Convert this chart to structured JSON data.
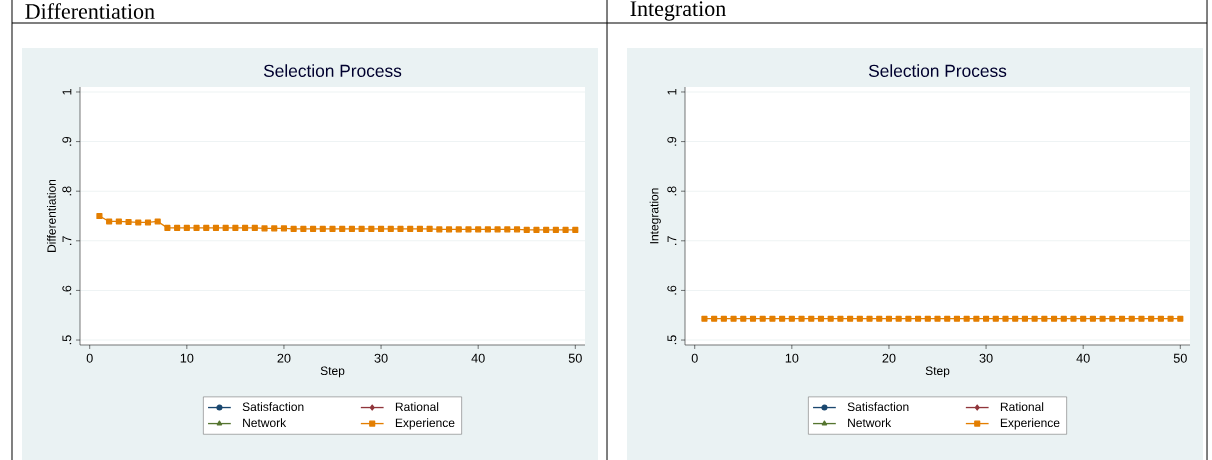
{
  "chart_data": [
    {
      "type": "line",
      "title": "Selection Process",
      "annotations": [
        "Differentiation"
      ],
      "xlabel": "Step",
      "ylabel": "Differentiation",
      "x": [
        1,
        2,
        3,
        4,
        5,
        6,
        7,
        8,
        9,
        10,
        11,
        12,
        13,
        14,
        15,
        16,
        17,
        18,
        19,
        20,
        21,
        22,
        23,
        24,
        25,
        26,
        27,
        28,
        29,
        30,
        31,
        32,
        33,
        34,
        35,
        36,
        37,
        38,
        39,
        40,
        41,
        42,
        43,
        44,
        45,
        46,
        47,
        48,
        49,
        50
      ],
      "series": [
        {
          "name": "Satisfaction",
          "color": "#1a476f",
          "marker": "circle",
          "values": [
            null,
            null,
            null,
            null,
            null,
            null,
            null,
            null,
            null,
            null,
            null,
            null,
            null,
            null,
            null,
            null,
            null,
            null,
            null,
            null,
            null,
            null,
            null,
            null,
            null,
            null,
            null,
            null,
            null,
            null,
            null,
            null,
            null,
            null,
            null,
            null,
            null,
            null,
            null,
            null,
            null,
            null,
            null,
            null,
            null,
            null,
            null,
            null,
            null,
            null
          ]
        },
        {
          "name": "Rational",
          "color": "#90353b",
          "marker": "diamond",
          "values": [
            null,
            null,
            null,
            null,
            null,
            null,
            null,
            null,
            null,
            null,
            null,
            null,
            null,
            null,
            null,
            null,
            null,
            null,
            null,
            null,
            null,
            null,
            null,
            null,
            null,
            null,
            null,
            null,
            null,
            null,
            null,
            null,
            null,
            null,
            null,
            null,
            null,
            null,
            null,
            null,
            null,
            null,
            null,
            null,
            null,
            null,
            null,
            null,
            null,
            null
          ]
        },
        {
          "name": "Network",
          "color": "#55752f",
          "marker": "triangle",
          "values": [
            null,
            null,
            null,
            null,
            null,
            null,
            null,
            null,
            null,
            null,
            null,
            null,
            null,
            null,
            null,
            null,
            null,
            null,
            null,
            null,
            null,
            null,
            null,
            null,
            null,
            null,
            null,
            null,
            null,
            null,
            null,
            null,
            null,
            null,
            null,
            null,
            null,
            null,
            null,
            null,
            null,
            null,
            null,
            null,
            null,
            null,
            null,
            null,
            null,
            null
          ]
        },
        {
          "name": "Experience",
          "color": "#e37e00",
          "marker": "square",
          "values": [
            0.75,
            0.739,
            0.739,
            0.738,
            0.737,
            0.737,
            0.739,
            0.726,
            0.726,
            0.726,
            0.726,
            0.726,
            0.726,
            0.726,
            0.726,
            0.726,
            0.726,
            0.725,
            0.725,
            0.725,
            0.724,
            0.724,
            0.724,
            0.724,
            0.724,
            0.724,
            0.724,
            0.724,
            0.724,
            0.724,
            0.724,
            0.724,
            0.724,
            0.724,
            0.724,
            0.723,
            0.723,
            0.723,
            0.723,
            0.723,
            0.723,
            0.723,
            0.723,
            0.723,
            0.722,
            0.722,
            0.722,
            0.722,
            0.722,
            0.722
          ]
        }
      ],
      "xlim": [
        -1,
        51
      ],
      "xticks": [
        0,
        10,
        20,
        30,
        40,
        50
      ],
      "ylim": [
        0.49,
        1.01
      ],
      "yticks": [
        {
          "value": 0.5,
          "label": ".5"
        },
        {
          "value": 0.6,
          "label": ".6"
        },
        {
          "value": 0.7,
          "label": ".7"
        },
        {
          "value": 0.8,
          "label": ".8"
        },
        {
          "value": 0.9,
          "label": ".9"
        },
        1
      ],
      "grid": "y",
      "legend": "bottom"
    },
    {
      "type": "line",
      "title": "Selection Process",
      "annotations": [
        "Integration"
      ],
      "xlabel": "Step",
      "ylabel": "Integration",
      "x": [
        1,
        2,
        3,
        4,
        5,
        6,
        7,
        8,
        9,
        10,
        11,
        12,
        13,
        14,
        15,
        16,
        17,
        18,
        19,
        20,
        21,
        22,
        23,
        24,
        25,
        26,
        27,
        28,
        29,
        30,
        31,
        32,
        33,
        34,
        35,
        36,
        37,
        38,
        39,
        40,
        41,
        42,
        43,
        44,
        45,
        46,
        47,
        48,
        49,
        50
      ],
      "series": [
        {
          "name": "Satisfaction",
          "color": "#1a476f",
          "marker": "circle",
          "values": [
            null,
            null,
            null,
            null,
            null,
            null,
            null,
            null,
            null,
            null,
            null,
            null,
            null,
            null,
            null,
            null,
            null,
            null,
            null,
            null,
            null,
            null,
            null,
            null,
            null,
            null,
            null,
            null,
            null,
            null,
            null,
            null,
            null,
            null,
            null,
            null,
            null,
            null,
            null,
            null,
            null,
            null,
            null,
            null,
            null,
            null,
            null,
            null,
            null,
            null
          ]
        },
        {
          "name": "Rational",
          "color": "#90353b",
          "marker": "diamond",
          "values": [
            null,
            null,
            null,
            null,
            null,
            null,
            null,
            null,
            null,
            null,
            null,
            null,
            null,
            null,
            null,
            null,
            null,
            null,
            null,
            null,
            null,
            null,
            null,
            null,
            null,
            null,
            null,
            null,
            null,
            null,
            null,
            null,
            null,
            null,
            null,
            null,
            null,
            null,
            null,
            null,
            null,
            null,
            null,
            null,
            null,
            null,
            null,
            null,
            null,
            null
          ]
        },
        {
          "name": "Network",
          "color": "#55752f",
          "marker": "triangle",
          "values": [
            null,
            null,
            null,
            null,
            null,
            null,
            null,
            null,
            null,
            null,
            null,
            null,
            null,
            null,
            null,
            null,
            null,
            null,
            null,
            null,
            null,
            null,
            null,
            null,
            null,
            null,
            null,
            null,
            null,
            null,
            null,
            null,
            null,
            null,
            null,
            null,
            null,
            null,
            null,
            null,
            null,
            null,
            null,
            null,
            null,
            null,
            null,
            null,
            null,
            null
          ]
        },
        {
          "name": "Experience",
          "color": "#e37e00",
          "marker": "square",
          "values": [
            0.543,
            0.543,
            0.543,
            0.543,
            0.543,
            0.543,
            0.543,
            0.543,
            0.543,
            0.543,
            0.543,
            0.543,
            0.543,
            0.543,
            0.543,
            0.543,
            0.543,
            0.543,
            0.543,
            0.543,
            0.543,
            0.543,
            0.543,
            0.543,
            0.543,
            0.543,
            0.543,
            0.543,
            0.543,
            0.543,
            0.543,
            0.543,
            0.543,
            0.543,
            0.543,
            0.543,
            0.543,
            0.543,
            0.543,
            0.543,
            0.543,
            0.543,
            0.543,
            0.543,
            0.543,
            0.543,
            0.543,
            0.543,
            0.543,
            0.543
          ]
        }
      ],
      "xlim": [
        -1,
        51
      ],
      "xticks": [
        0,
        10,
        20,
        30,
        40,
        50
      ],
      "ylim": [
        0.49,
        1.01
      ],
      "yticks": [
        {
          "value": 0.5,
          "label": ".5"
        },
        {
          "value": 0.6,
          "label": ".6"
        },
        {
          "value": 0.7,
          "label": ".7"
        },
        {
          "value": 0.8,
          "label": ".8"
        },
        {
          "value": 0.9,
          "label": ".9"
        },
        1
      ],
      "grid": "y",
      "legend": "bottom"
    }
  ]
}
